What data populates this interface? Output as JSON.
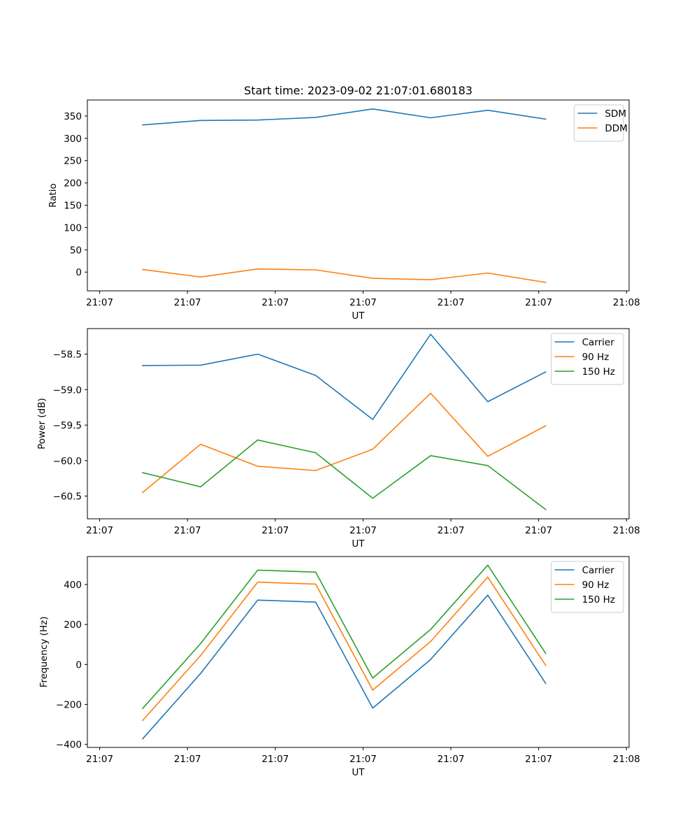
{
  "chart_data": [
    {
      "type": "line",
      "title": "Start time: 2023-09-02 21:07:01.680183",
      "xlabel": "UT",
      "ylabel": "Ratio",
      "x_tick_labels": [
        "21:07",
        "21:07",
        "21:07",
        "21:07",
        "21:07",
        "21:07",
        "21:08"
      ],
      "x_ticks": [
        0,
        1,
        2,
        3,
        4,
        5,
        6
      ],
      "xlim": [
        -0.14,
        6.03
      ],
      "x": [
        0.49,
        1.15,
        1.8,
        2.46,
        3.11,
        3.77,
        4.42,
        5.08
      ],
      "y_ticks": [
        0,
        50,
        100,
        150,
        200,
        250,
        300,
        350
      ],
      "ylim": [
        -42,
        386
      ],
      "series": [
        {
          "name": "SDM",
          "color": "#1f77b4",
          "values": [
            330,
            340,
            341,
            347,
            366,
            346,
            363,
            343
          ]
        },
        {
          "name": "DDM",
          "color": "#ff7f0e",
          "values": [
            6,
            -11,
            7,
            5,
            -14,
            -17,
            -2,
            -23
          ]
        }
      ],
      "legend": "top-right"
    },
    {
      "type": "line",
      "title": "",
      "xlabel": "UT",
      "ylabel": "Power (dB)",
      "x_tick_labels": [
        "21:07",
        "21:07",
        "21:07",
        "21:07",
        "21:07",
        "21:07",
        "21:08"
      ],
      "x_ticks": [
        0,
        1,
        2,
        3,
        4,
        5,
        6
      ],
      "xlim": [
        -0.14,
        6.03
      ],
      "x": [
        0.49,
        1.15,
        1.8,
        2.46,
        3.11,
        3.77,
        4.42,
        5.08
      ],
      "y_ticks": [
        -60.5,
        -60.0,
        -59.5,
        -59.0,
        -58.5
      ],
      "y_tick_labels": [
        "−60.5",
        "−60.0",
        "−59.5",
        "−59.0",
        "−58.5"
      ],
      "ylim": [
        -60.82,
        -58.14
      ],
      "series": [
        {
          "name": "Carrier",
          "color": "#1f77b4",
          "values": [
            -58.66,
            -58.655,
            -58.5,
            -58.8,
            -59.42,
            -58.22,
            -59.17,
            -58.75
          ]
        },
        {
          "name": "90 Hz",
          "color": "#ff7f0e",
          "values": [
            -60.45,
            -59.77,
            -60.08,
            -60.14,
            -59.84,
            -59.05,
            -59.94,
            -59.51
          ]
        },
        {
          "name": "150 Hz",
          "color": "#2ca02c",
          "values": [
            -60.17,
            -60.37,
            -59.71,
            -59.89,
            -60.53,
            -59.93,
            -60.07,
            -60.69
          ]
        }
      ],
      "legend": "top-right"
    },
    {
      "type": "line",
      "title": "",
      "xlabel": "UT",
      "ylabel": "Frequency (Hz)",
      "x_tick_labels": [
        "21:07",
        "21:07",
        "21:07",
        "21:07",
        "21:07",
        "21:07",
        "21:08"
      ],
      "x_ticks": [
        0,
        1,
        2,
        3,
        4,
        5,
        6
      ],
      "xlim": [
        -0.14,
        6.03
      ],
      "x": [
        0.49,
        1.15,
        1.8,
        2.46,
        3.11,
        3.77,
        4.42,
        5.08
      ],
      "y_ticks": [
        -400,
        -200,
        0,
        200,
        400
      ],
      "y_tick_labels": [
        "−400",
        "−200",
        "0",
        "200",
        "400"
      ],
      "ylim": [
        -415,
        540
      ],
      "series": [
        {
          "name": "Carrier",
          "color": "#1f77b4",
          "values": [
            -372,
            -45,
            322,
            312,
            -218,
            25,
            347,
            -95
          ]
        },
        {
          "name": "90 Hz",
          "color": "#ff7f0e",
          "values": [
            -280,
            45,
            412,
            402,
            -128,
            115,
            437,
            -5
          ]
        },
        {
          "name": "150 Hz",
          "color": "#2ca02c",
          "values": [
            -220,
            105,
            472,
            462,
            -68,
            175,
            497,
            55
          ]
        }
      ],
      "legend": "top-right"
    }
  ]
}
